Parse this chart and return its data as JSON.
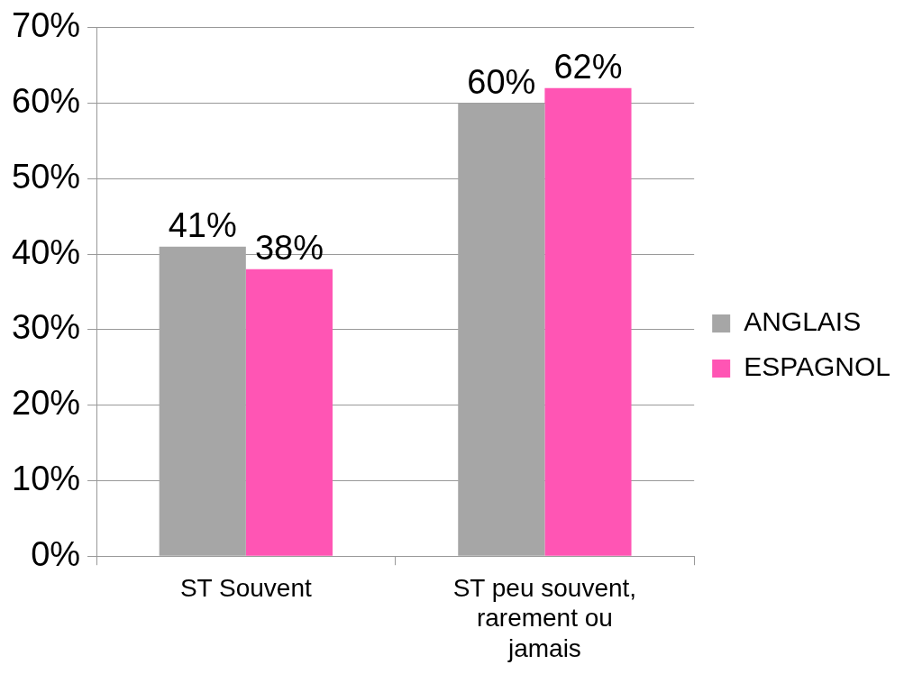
{
  "chart_data": {
    "type": "bar",
    "categories": [
      "ST Souvent",
      "ST peu souvent, rarement ou jamais"
    ],
    "series": [
      {
        "name": "ANGLAIS",
        "color": "#a6a6a6",
        "values": [
          41,
          60
        ],
        "value_labels": [
          "41%",
          "60%"
        ]
      },
      {
        "name": "ESPAGNOL",
        "color": "#ff55b4",
        "values": [
          38,
          62
        ],
        "value_labels": [
          "38%",
          "62%"
        ]
      }
    ],
    "ylim": [
      0,
      70
    ],
    "yticks": [
      {
        "value": 0,
        "label": "0%"
      },
      {
        "value": 10,
        "label": "10%"
      },
      {
        "value": 20,
        "label": "20%"
      },
      {
        "value": 30,
        "label": "30%"
      },
      {
        "value": 40,
        "label": "40%"
      },
      {
        "value": 50,
        "label": "50%"
      },
      {
        "value": 60,
        "label": "60%"
      },
      {
        "value": 70,
        "label": "70%"
      }
    ],
    "grid": "y",
    "legend": "right"
  }
}
